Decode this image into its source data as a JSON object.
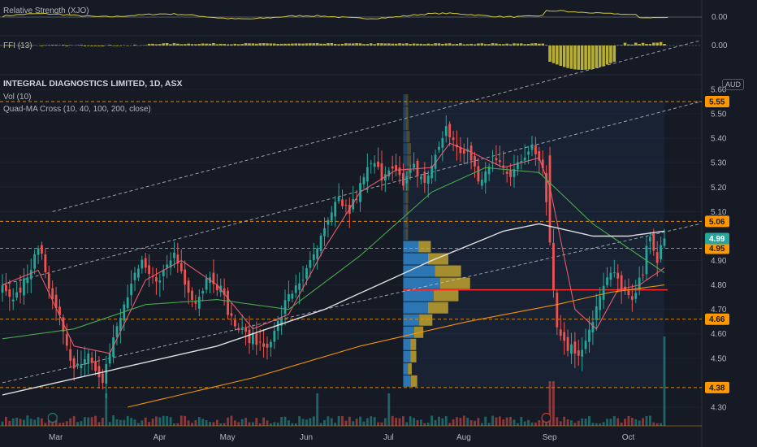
{
  "header": {
    "title": "INTEGRAL DIAGNOSTICS LIMITED, 1D, ASX",
    "vol": "Vol (10)",
    "quad_ma": "Quad-MA Cross (10, 40, 100, 200, close)",
    "currency": "AUD"
  },
  "rs_pane": {
    "label": "Relative Strength (XJO)",
    "value_label": "0.00"
  },
  "ffi_pane": {
    "label": "FFI (13)",
    "value_label": "0.00"
  },
  "colors": {
    "background": "#161a25",
    "up": "#26a69a",
    "down": "#ef5350",
    "ma10": "#f06070",
    "ma40": "#4caf50",
    "ma100": "#e8e8e8",
    "ma200": "#ff9800",
    "level_line": "#ff9800",
    "indicator": "#d4c93a",
    "profile_up": "#2f7fc1",
    "profile_down": "#b59a2f",
    "poc": "#ff2a2a",
    "last_price": "#26a69a"
  },
  "chart_data": {
    "type": "candlestick",
    "symbol": "INTEGRAL DIAGNOSTICS LIMITED",
    "interval": "1D",
    "exchange": "ASX",
    "y_range": [
      4.25,
      5.62
    ],
    "y_ticks": [
      "5.60",
      "5.50",
      "5.40",
      "5.30",
      "5.20",
      "5.10",
      "4.90",
      "4.80",
      "4.70",
      "4.60",
      "4.50",
      "4.30"
    ],
    "month_labels": [
      "Mar",
      "Apr",
      "May",
      "Jun",
      "Jul",
      "Aug",
      "Sep",
      "Oct"
    ],
    "price_tags": [
      {
        "label": "5.55",
        "value": 5.55,
        "kind": "level"
      },
      {
        "label": "5.06",
        "value": 5.06,
        "kind": "level"
      },
      {
        "label": "4.95",
        "value": 4.95,
        "kind": "level"
      },
      {
        "label": "4.66",
        "value": 4.66,
        "kind": "level"
      },
      {
        "label": "4.38",
        "value": 4.38,
        "kind": "level"
      },
      {
        "label": "4.99",
        "value": 4.99,
        "kind": "last"
      }
    ],
    "poc_price": 4.78,
    "close_anchors": [
      [
        0,
        4.78
      ],
      [
        3,
        4.72
      ],
      [
        8,
        4.88
      ],
      [
        11,
        4.95
      ],
      [
        14,
        4.72
      ],
      [
        17,
        4.62
      ],
      [
        20,
        4.46
      ],
      [
        24,
        4.52
      ],
      [
        28,
        4.42
      ],
      [
        32,
        4.62
      ],
      [
        36,
        4.8
      ],
      [
        39,
        4.88
      ],
      [
        42,
        4.82
      ],
      [
        45,
        4.85
      ],
      [
        48,
        4.93
      ],
      [
        51,
        4.82
      ],
      [
        54,
        4.73
      ],
      [
        58,
        4.85
      ],
      [
        61,
        4.78
      ],
      [
        64,
        4.66
      ],
      [
        67,
        4.6
      ],
      [
        70,
        4.58
      ],
      [
        73,
        4.55
      ],
      [
        76,
        4.6
      ],
      [
        79,
        4.72
      ],
      [
        82,
        4.8
      ],
      [
        85,
        4.85
      ],
      [
        88,
        4.95
      ],
      [
        91,
        5.05
      ],
      [
        94,
        5.15
      ],
      [
        97,
        5.1
      ],
      [
        100,
        5.2
      ],
      [
        103,
        5.3
      ],
      [
        106,
        5.25
      ],
      [
        109,
        5.3
      ],
      [
        112,
        5.2
      ],
      [
        115,
        5.28
      ],
      [
        118,
        5.22
      ],
      [
        121,
        5.32
      ],
      [
        124,
        5.45
      ],
      [
        127,
        5.35
      ],
      [
        130,
        5.35
      ],
      [
        133,
        5.22
      ],
      [
        136,
        5.28
      ],
      [
        139,
        5.32
      ],
      [
        142,
        5.25
      ],
      [
        145,
        5.3
      ],
      [
        148,
        5.38
      ],
      [
        151,
        5.3
      ],
      [
        153,
        4.98
      ],
      [
        155,
        4.62
      ],
      [
        158,
        4.55
      ],
      [
        161,
        4.52
      ],
      [
        164,
        4.62
      ],
      [
        167,
        4.75
      ],
      [
        170,
        4.85
      ],
      [
        173,
        4.8
      ],
      [
        176,
        4.72
      ],
      [
        179,
        4.85
      ],
      [
        181,
        5.02
      ],
      [
        183,
        4.9
      ],
      [
        185,
        4.99
      ]
    ],
    "ma_series": {
      "ma10": [
        [
          0,
          4.8
        ],
        [
          10,
          4.86
        ],
        [
          20,
          4.55
        ],
        [
          30,
          4.52
        ],
        [
          40,
          4.82
        ],
        [
          50,
          4.9
        ],
        [
          60,
          4.8
        ],
        [
          70,
          4.62
        ],
        [
          80,
          4.68
        ],
        [
          90,
          4.95
        ],
        [
          100,
          5.18
        ],
        [
          110,
          5.27
        ],
        [
          120,
          5.28
        ],
        [
          125,
          5.38
        ],
        [
          130,
          5.35
        ],
        [
          140,
          5.28
        ],
        [
          150,
          5.32
        ],
        [
          153,
          5.2
        ],
        [
          160,
          4.7
        ],
        [
          166,
          4.62
        ],
        [
          172,
          4.78
        ],
        [
          178,
          4.8
        ],
        [
          185,
          4.87
        ]
      ],
      "ma40": [
        [
          0,
          4.58
        ],
        [
          20,
          4.62
        ],
        [
          40,
          4.72
        ],
        [
          60,
          4.74
        ],
        [
          80,
          4.7
        ],
        [
          100,
          4.92
        ],
        [
          120,
          5.18
        ],
        [
          135,
          5.28
        ],
        [
          150,
          5.26
        ],
        [
          165,
          5.05
        ],
        [
          175,
          4.95
        ],
        [
          185,
          4.85
        ]
      ],
      "ma100": [
        [
          0,
          4.35
        ],
        [
          30,
          4.45
        ],
        [
          60,
          4.55
        ],
        [
          90,
          4.7
        ],
        [
          120,
          4.9
        ],
        [
          140,
          5.02
        ],
        [
          150,
          5.05
        ],
        [
          165,
          5.0
        ],
        [
          175,
          5.0
        ],
        [
          185,
          5.02
        ]
      ],
      "ma200": [
        [
          35,
          4.3
        ],
        [
          70,
          4.42
        ],
        [
          100,
          4.55
        ],
        [
          130,
          4.65
        ],
        [
          155,
          4.72
        ],
        [
          170,
          4.77
        ],
        [
          185,
          4.8
        ]
      ]
    },
    "channel_lines": [
      {
        "from": [
          0,
          4.8
        ],
        "to": [
          195,
          5.55
        ]
      },
      {
        "from": [
          0,
          4.4
        ],
        "to": [
          195,
          5.05
        ]
      },
      {
        "from": [
          14,
          5.1
        ],
        "to": [
          195,
          5.8
        ]
      }
    ]
  }
}
